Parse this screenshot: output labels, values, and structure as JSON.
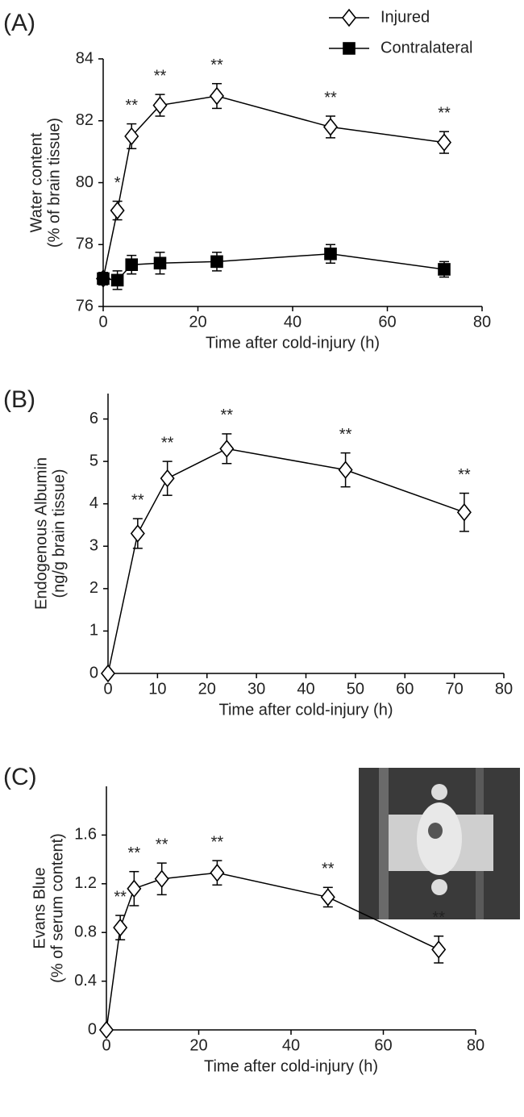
{
  "chart_data": [
    {
      "type": "line",
      "panel_label": "(A)",
      "xlabel": "Time after cold-injury (h)",
      "ylabel": [
        "Water content",
        "(% of brain tissue)"
      ],
      "xlim": [
        0,
        80
      ],
      "ylim": [
        76,
        84
      ],
      "xticks": [
        0,
        20,
        40,
        60,
        80
      ],
      "yticks": [
        76,
        78,
        80,
        82,
        84
      ],
      "legend": "upper right",
      "series": [
        {
          "name": "Injured",
          "marker": "diamond",
          "color": "#000000",
          "x": [
            0,
            3,
            6,
            12,
            24,
            48,
            72
          ],
          "values": [
            76.9,
            79.1,
            81.5,
            82.5,
            82.8,
            81.8,
            81.3
          ],
          "errors": [
            0.2,
            0.3,
            0.4,
            0.35,
            0.4,
            0.35,
            0.35
          ],
          "significance": [
            null,
            "*",
            "**",
            "**",
            "**",
            "**",
            "**"
          ]
        },
        {
          "name": "Contralateral",
          "marker": "square",
          "color": "#000000",
          "x": [
            0,
            3,
            6,
            12,
            24,
            48,
            72
          ],
          "values": [
            76.9,
            76.85,
            77.35,
            77.4,
            77.45,
            77.7,
            77.2
          ],
          "errors": [
            0.2,
            0.3,
            0.3,
            0.35,
            0.3,
            0.3,
            0.25
          ]
        }
      ]
    },
    {
      "type": "line",
      "panel_label": "(B)",
      "xlabel": "Time after cold-injury (h)",
      "ylabel": [
        "Endogenous Albumin",
        "(ng/g brain tissue)"
      ],
      "xlim": [
        0,
        80
      ],
      "ylim": [
        0,
        6.6
      ],
      "xticks": [
        0,
        10,
        20,
        30,
        40,
        50,
        60,
        70,
        80
      ],
      "yticks": [
        0,
        1,
        2,
        3,
        4,
        5,
        6
      ],
      "series": [
        {
          "marker": "diamond",
          "color": "#000000",
          "x": [
            0,
            6,
            12,
            24,
            48,
            72
          ],
          "values": [
            0,
            3.3,
            4.6,
            5.3,
            4.8,
            3.8
          ],
          "errors": [
            0,
            0.35,
            0.4,
            0.35,
            0.4,
            0.45
          ],
          "significance": [
            null,
            "**",
            "**",
            "**",
            "**",
            "**"
          ]
        }
      ]
    },
    {
      "type": "line",
      "panel_label": "(C)",
      "xlabel": "Time after cold-injury (h)",
      "ylabel": [
        "Evans Blue",
        "(% of serum content)"
      ],
      "xlim": [
        0,
        80
      ],
      "ylim": [
        0,
        2
      ],
      "xticks": [
        0,
        20,
        40,
        60,
        80
      ],
      "yticks": [
        0,
        0.4,
        0.8,
        1.2,
        1.6
      ],
      "series": [
        {
          "marker": "diamond",
          "color": "#000000",
          "x": [
            0,
            3,
            6,
            12,
            24,
            48,
            72
          ],
          "values": [
            0,
            0.84,
            1.16,
            1.24,
            1.29,
            1.09,
            0.66
          ],
          "errors": [
            0,
            0.1,
            0.14,
            0.13,
            0.1,
            0.08,
            0.11
          ],
          "significance": [
            null,
            "**",
            "**",
            "**",
            "**",
            "**",
            "**"
          ]
        }
      ]
    }
  ]
}
